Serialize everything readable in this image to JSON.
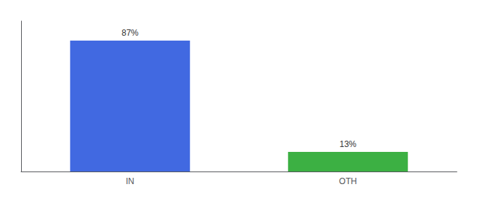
{
  "chart_data": {
    "type": "bar",
    "categories": [
      "IN",
      "OTH"
    ],
    "values": [
      87,
      13
    ],
    "colors": [
      "#4169e1",
      "#3cb043"
    ],
    "value_labels": [
      "87%",
      "13%"
    ],
    "data_labels": true,
    "ylim": [
      0,
      100
    ],
    "tick_labels": "x",
    "grid": false
  }
}
